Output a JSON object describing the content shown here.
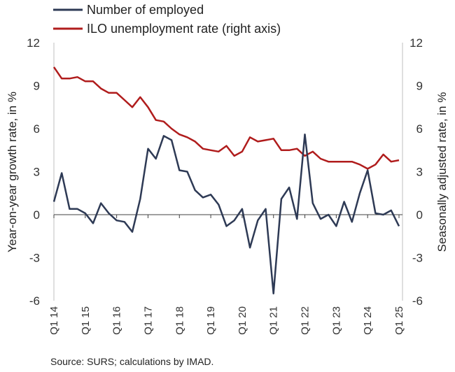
{
  "chart_data": {
    "type": "line",
    "source": "Source: SURS; calculations by IMAD.",
    "ylabel": "Year-on-year growth rate, in %",
    "ylabel_right": "Seasonally adjusted rate, in %",
    "ylim": [
      -6,
      12
    ],
    "yticks": [
      "-6",
      "-3",
      "0",
      "3",
      "6",
      "9",
      "12"
    ],
    "ylim_right": [
      -6,
      12
    ],
    "yticks_right": [
      "-6",
      "-3",
      "0",
      "3",
      "6",
      "9",
      "12"
    ],
    "x_labels": [
      "Q1 14",
      "Q1 15",
      "Q1 16",
      "Q1 17",
      "Q1 18",
      "Q1 19",
      "Q1 20",
      "Q1 21",
      "Q1 22",
      "Q1 23",
      "Q1 24",
      "Q1 25"
    ],
    "x": [
      "Q1 14",
      "Q2 14",
      "Q3 14",
      "Q4 14",
      "Q1 15",
      "Q2 15",
      "Q3 15",
      "Q4 15",
      "Q1 16",
      "Q2 16",
      "Q3 16",
      "Q4 16",
      "Q1 17",
      "Q2 17",
      "Q3 17",
      "Q4 17",
      "Q1 18",
      "Q2 18",
      "Q3 18",
      "Q4 18",
      "Q1 19",
      "Q2 19",
      "Q3 19",
      "Q4 19",
      "Q1 20",
      "Q2 20",
      "Q3 20",
      "Q4 20",
      "Q1 21",
      "Q2 21",
      "Q3 21",
      "Q4 21",
      "Q1 22",
      "Q2 22",
      "Q3 22",
      "Q4 22",
      "Q1 23",
      "Q2 23",
      "Q3 23",
      "Q4 23",
      "Q1 24",
      "Q2 24",
      "Q3 24",
      "Q4 24",
      "Q1 25"
    ],
    "legend_position": "top-left",
    "grid": false,
    "series": [
      {
        "name": "Number of employed",
        "axis": "left",
        "color": "#2e3a55",
        "values": [
          0.9,
          2.9,
          0.4,
          0.4,
          0.1,
          -0.6,
          0.8,
          0.1,
          -0.4,
          -0.5,
          -1.2,
          1.1,
          4.6,
          3.9,
          5.5,
          5.2,
          3.1,
          3.0,
          1.7,
          1.2,
          1.4,
          0.7,
          -0.8,
          -0.4,
          0.4,
          -2.3,
          -0.4,
          0.4,
          -5.5,
          1.1,
          1.9,
          -0.3,
          5.6,
          0.8,
          -0.3,
          0.0,
          -0.8,
          0.9,
          -0.5,
          1.5,
          3.1,
          0.1,
          0.0,
          0.3,
          -0.8
        ]
      },
      {
        "name": "ILO unemployment rate (right axis)",
        "axis": "right",
        "color": "#b01c1c",
        "values": [
          10.3,
          9.5,
          9.5,
          9.6,
          9.3,
          9.3,
          8.8,
          8.5,
          8.5,
          8.0,
          7.5,
          8.2,
          7.5,
          6.6,
          6.5,
          6.0,
          5.6,
          5.4,
          5.1,
          4.6,
          4.5,
          4.4,
          4.8,
          4.1,
          4.4,
          5.4,
          5.1,
          5.2,
          5.3,
          4.5,
          4.5,
          4.6,
          4.1,
          4.4,
          3.9,
          3.7,
          3.7,
          3.7,
          3.7,
          3.5,
          3.2,
          3.5,
          4.2,
          3.7,
          3.8
        ]
      }
    ]
  }
}
